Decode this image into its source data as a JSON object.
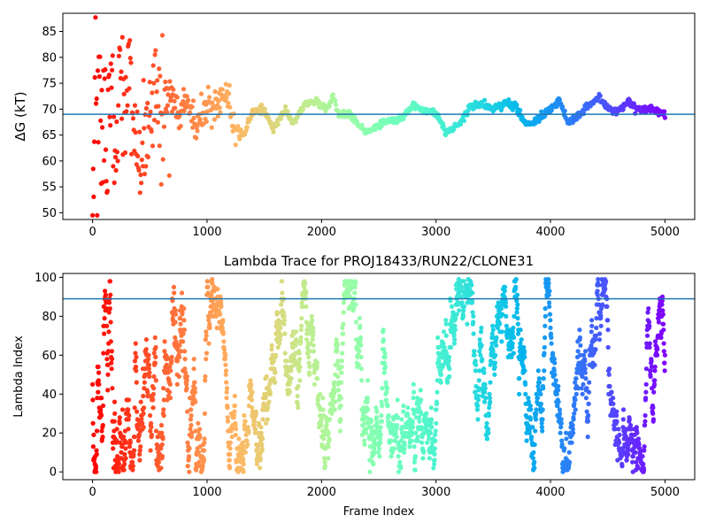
{
  "chart_data": [
    {
      "type": "scatter",
      "title": "",
      "xlabel": "",
      "ylabel": "ΔG (kT)",
      "xlim": [
        -260,
        5260
      ],
      "ylim": [
        48.7,
        88.5
      ],
      "xticks": [
        0,
        1000,
        2000,
        3000,
        4000,
        5000
      ],
      "yticks": [
        50,
        55,
        60,
        65,
        70,
        75,
        80,
        85
      ],
      "hline": 69,
      "hline_color": "#1f77b4",
      "colormap": "rainbow (red at frame 0 → violet at frame 5000)",
      "grid": false,
      "trace_anchors": [
        {
          "x": 0,
          "y": 50
        },
        {
          "x": 20,
          "y": 84
        },
        {
          "x": 40,
          "y": 58
        },
        {
          "x": 60,
          "y": 80
        },
        {
          "x": 80,
          "y": 62
        },
        {
          "x": 100,
          "y": 77
        },
        {
          "x": 130,
          "y": 66
        },
        {
          "x": 160,
          "y": 74
        },
        {
          "x": 200,
          "y": 62
        },
        {
          "x": 240,
          "y": 75
        },
        {
          "x": 280,
          "y": 68
        },
        {
          "x": 320,
          "y": 80
        },
        {
          "x": 360,
          "y": 64
        },
        {
          "x": 420,
          "y": 60
        },
        {
          "x": 480,
          "y": 70
        },
        {
          "x": 550,
          "y": 74
        },
        {
          "x": 600,
          "y": 66
        },
        {
          "x": 680,
          "y": 73
        },
        {
          "x": 760,
          "y": 69
        },
        {
          "x": 820,
          "y": 71
        },
        {
          "x": 900,
          "y": 67
        },
        {
          "x": 1000,
          "y": 69
        },
        {
          "x": 1100,
          "y": 71
        },
        {
          "x": 1180,
          "y": 73
        },
        {
          "x": 1250,
          "y": 65
        },
        {
          "x": 1320,
          "y": 65
        },
        {
          "x": 1400,
          "y": 69.5
        },
        {
          "x": 1500,
          "y": 70
        },
        {
          "x": 1580,
          "y": 66
        },
        {
          "x": 1680,
          "y": 70
        },
        {
          "x": 1750,
          "y": 67
        },
        {
          "x": 1850,
          "y": 71
        },
        {
          "x": 1950,
          "y": 71.5
        },
        {
          "x": 2050,
          "y": 70
        },
        {
          "x": 2100,
          "y": 72.5
        },
        {
          "x": 2150,
          "y": 69
        },
        {
          "x": 2250,
          "y": 69
        },
        {
          "x": 2320,
          "y": 67
        },
        {
          "x": 2400,
          "y": 65.5
        },
        {
          "x": 2500,
          "y": 67
        },
        {
          "x": 2600,
          "y": 68
        },
        {
          "x": 2700,
          "y": 68
        },
        {
          "x": 2800,
          "y": 71
        },
        {
          "x": 2900,
          "y": 69.5
        },
        {
          "x": 3000,
          "y": 69.5
        },
        {
          "x": 3080,
          "y": 65.5
        },
        {
          "x": 3200,
          "y": 67
        },
        {
          "x": 3300,
          "y": 70.5
        },
        {
          "x": 3400,
          "y": 71
        },
        {
          "x": 3500,
          "y": 70
        },
        {
          "x": 3600,
          "y": 71
        },
        {
          "x": 3700,
          "y": 70.5
        },
        {
          "x": 3780,
          "y": 67
        },
        {
          "x": 3900,
          "y": 68
        },
        {
          "x": 4000,
          "y": 70
        },
        {
          "x": 4080,
          "y": 71.5
        },
        {
          "x": 4150,
          "y": 67.5
        },
        {
          "x": 4300,
          "y": 70
        },
        {
          "x": 4420,
          "y": 72.5
        },
        {
          "x": 4500,
          "y": 70
        },
        {
          "x": 4600,
          "y": 69.5
        },
        {
          "x": 4680,
          "y": 71.5
        },
        {
          "x": 4750,
          "y": 70
        },
        {
          "x": 4880,
          "y": 70
        },
        {
          "x": 5000,
          "y": 69
        }
      ]
    },
    {
      "type": "scatter",
      "title": "Lambda Trace for PROJ18433/RUN22/CLONE31",
      "xlabel": "Frame Index",
      "ylabel": "Lambda Index",
      "xlim": [
        -260,
        5260
      ],
      "ylim": [
        -4,
        102
      ],
      "xticks": [
        0,
        1000,
        2000,
        3000,
        4000,
        5000
      ],
      "yticks": [
        0,
        20,
        40,
        60,
        80,
        100
      ],
      "hline": 89,
      "hline_color": "#1f77b4",
      "colormap": "rainbow (red at frame 0 → violet at frame 5000)",
      "grid": false,
      "lambda_range": [
        0,
        99
      ],
      "frame_range": [
        0,
        5000
      ]
    }
  ]
}
